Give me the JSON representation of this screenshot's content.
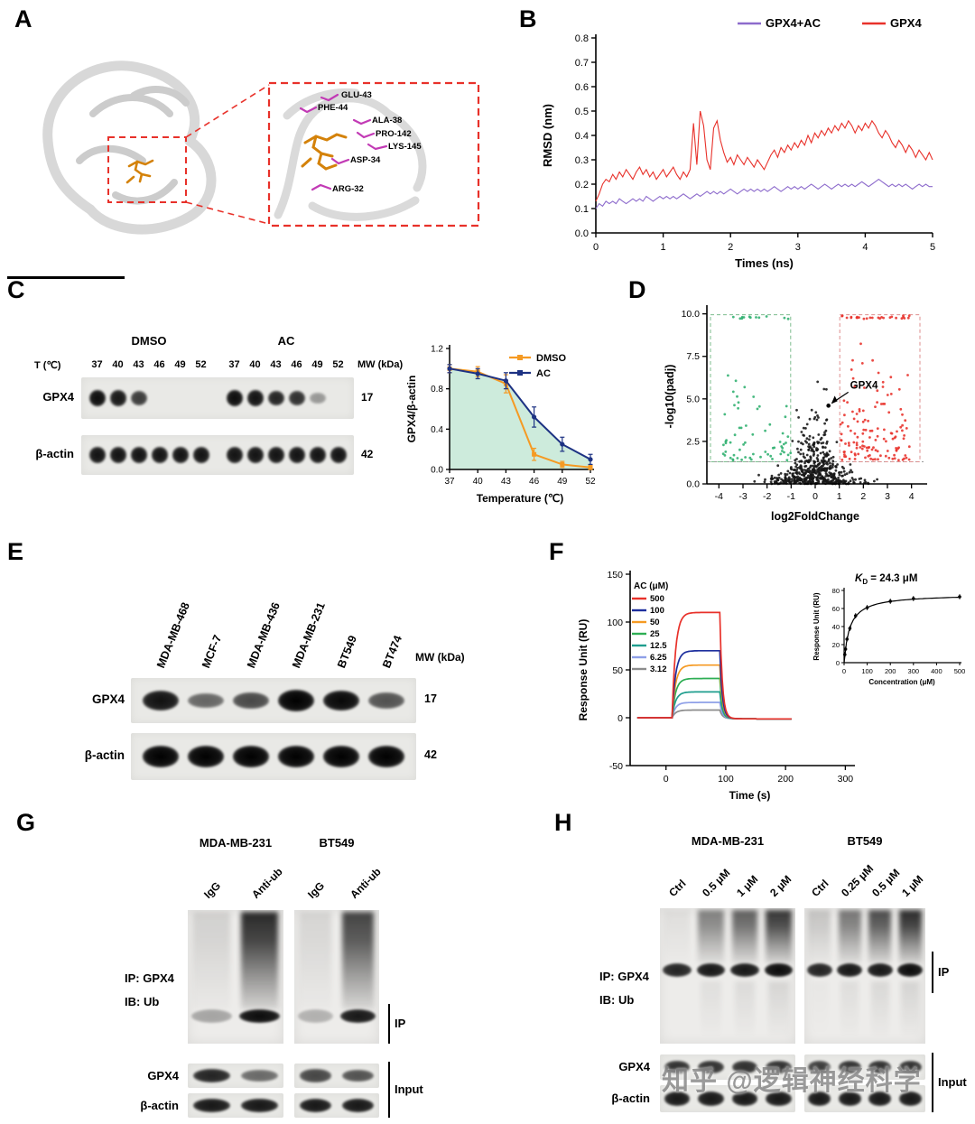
{
  "figure": {
    "watermark": "知乎 @逻辑神经科学"
  },
  "panels": {
    "A": {
      "label": "A",
      "residues": [
        "GLU-43",
        "PHE-44",
        "ALA-38",
        "PRO-142",
        "LYS-145",
        "ASP-34",
        "ARG-32"
      ],
      "colors": {
        "ligand": "#d4820a",
        "residue": "#c23ab5",
        "box": "#e8312a"
      }
    },
    "B": {
      "label": "B"
    },
    "C": {
      "label": "C",
      "blot": {
        "groups": [
          "DMSO",
          "AC"
        ],
        "temp_label": "T (℃)",
        "temps": [
          "37",
          "40",
          "43",
          "46",
          "49",
          "52"
        ],
        "mw_label": "MW (kDa)",
        "rows": [
          {
            "name": "GPX4",
            "mw": "17",
            "group_bands": [
              [
                0.95,
                0.9,
                0.75,
                0,
                0,
                0
              ],
              [
                0.95,
                0.92,
                0.85,
                0.8,
                0.35,
                0
              ]
            ]
          },
          {
            "name": "β-actin",
            "mw": "42",
            "group_bands": [
              [
                0.92,
                0.92,
                0.92,
                0.92,
                0.92,
                0.92
              ],
              [
                0.92,
                0.92,
                0.92,
                0.92,
                0.92,
                0.92
              ]
            ]
          }
        ]
      }
    },
    "D": {
      "label": "D"
    },
    "E": {
      "label": "E",
      "lanes": [
        "MDA-MB-468",
        "MCF-7",
        "MDA-MB-436",
        "MDA-MB-231",
        "BT549",
        "BT474"
      ],
      "mw_label": "MW (kDa)",
      "rows": [
        {
          "name": "GPX4",
          "mw": "17",
          "intensities": [
            0.85,
            0.4,
            0.55,
            1,
            0.9,
            0.5
          ]
        },
        {
          "name": "β-actin",
          "mw": "42",
          "intensities": [
            0.95,
            0.95,
            0.95,
            0.95,
            0.95,
            0.95
          ]
        }
      ]
    },
    "F": {
      "label": "F"
    },
    "G": {
      "label": "G",
      "groups": [
        {
          "name": "MDA-MB-231",
          "lanes": [
            "IgG",
            "Anti-ub"
          ]
        },
        {
          "name": "BT549",
          "lanes": [
            "IgG",
            "Anti-ub"
          ]
        }
      ],
      "ip_line1": "IP: GPX4",
      "ip_line2": "IB: Ub",
      "brackets": {
        "ip": "IP",
        "input": "Input"
      },
      "input_rows": [
        "GPX4",
        "β-actin"
      ],
      "smears": [
        [
          0.12,
          0.9
        ],
        [
          0.1,
          0.78
        ]
      ],
      "main_bands": [
        [
          0.3,
          0.95
        ],
        [
          0.25,
          0.9
        ]
      ],
      "input_bands": [
        [
          [
            0.85,
            0.55
          ],
          [
            0.7,
            0.65
          ]
        ],
        [
          [
            0.9,
            0.9
          ],
          [
            0.9,
            0.9
          ]
        ]
      ]
    },
    "H": {
      "label": "H",
      "groups": [
        {
          "name": "MDA-MB-231",
          "lanes": [
            "Ctrl",
            "0.5 μM",
            "1 μM",
            "2 μM"
          ]
        },
        {
          "name": "BT549",
          "lanes": [
            "Ctrl",
            "0.25 μM",
            "0.5 μM",
            "1 μM"
          ]
        }
      ],
      "ip_line1": "IP: GPX4",
      "ip_line2": "IB: Ub",
      "brackets": {
        "ip": "IP",
        "input": "Input"
      },
      "input_rows": [
        "GPX4",
        "β-actin"
      ],
      "smears": [
        [
          0.06,
          0.5,
          0.65,
          0.85
        ],
        [
          0.18,
          0.55,
          0.75,
          0.9
        ]
      ],
      "main_bands": [
        [
          0.85,
          0.9,
          0.9,
          0.95
        ],
        [
          0.85,
          0.9,
          0.9,
          0.95
        ]
      ],
      "input_bands": [
        [
          [
            0.8,
            0.8,
            0.8,
            0.8
          ],
          [
            0.75,
            0.8,
            0.8,
            0.8
          ]
        ],
        [
          [
            0.9,
            0.9,
            0.9,
            0.9
          ],
          [
            0.9,
            0.9,
            0.9,
            0.9
          ]
        ]
      ]
    }
  },
  "chart_data": [
    {
      "panel": "B",
      "type": "line",
      "xlabel": "Times (ns)",
      "ylabel": "RMSD (nm)",
      "xlim": [
        0,
        5
      ],
      "ylim": [
        0,
        0.8
      ],
      "xticks": [
        0,
        1,
        2,
        3,
        4,
        5
      ],
      "xtick_labels": [
        "0",
        "1",
        "2",
        "3",
        "4",
        "5"
      ],
      "yticks": [
        0,
        0.1,
        0.2,
        0.3,
        0.4,
        0.5,
        0.6,
        0.7,
        0.8
      ],
      "ytick_labels": [
        "0.0",
        "0.1",
        "0.2",
        "0.3",
        "0.4",
        "0.5",
        "0.6",
        "0.7",
        "0.8"
      ],
      "x_step": 0.05,
      "legend_position": "top-right",
      "series": [
        {
          "name": "GPX4+AC",
          "color": "#8d6bcc",
          "values": [
            0.1,
            0.12,
            0.11,
            0.13,
            0.12,
            0.13,
            0.12,
            0.14,
            0.13,
            0.12,
            0.13,
            0.14,
            0.13,
            0.14,
            0.13,
            0.15,
            0.14,
            0.13,
            0.14,
            0.15,
            0.14,
            0.15,
            0.14,
            0.15,
            0.14,
            0.15,
            0.16,
            0.15,
            0.14,
            0.15,
            0.16,
            0.15,
            0.16,
            0.17,
            0.16,
            0.17,
            0.16,
            0.17,
            0.16,
            0.17,
            0.18,
            0.17,
            0.16,
            0.17,
            0.18,
            0.17,
            0.18,
            0.17,
            0.18,
            0.17,
            0.18,
            0.17,
            0.18,
            0.19,
            0.18,
            0.17,
            0.18,
            0.19,
            0.18,
            0.19,
            0.18,
            0.19,
            0.18,
            0.19,
            0.2,
            0.19,
            0.18,
            0.19,
            0.2,
            0.19,
            0.18,
            0.19,
            0.2,
            0.19,
            0.2,
            0.19,
            0.2,
            0.19,
            0.2,
            0.21,
            0.2,
            0.19,
            0.2,
            0.21,
            0.22,
            0.21,
            0.2,
            0.19,
            0.2,
            0.19,
            0.2,
            0.19,
            0.2,
            0.19,
            0.18,
            0.19,
            0.2,
            0.19,
            0.2,
            0.19,
            0.19
          ]
        },
        {
          "name": "GPX4",
          "color": "#e8312a",
          "values": [
            0.13,
            0.16,
            0.2,
            0.22,
            0.21,
            0.24,
            0.22,
            0.25,
            0.23,
            0.26,
            0.24,
            0.22,
            0.25,
            0.27,
            0.24,
            0.26,
            0.23,
            0.25,
            0.22,
            0.24,
            0.26,
            0.23,
            0.25,
            0.27,
            0.24,
            0.22,
            0.25,
            0.23,
            0.26,
            0.45,
            0.28,
            0.5,
            0.44,
            0.3,
            0.26,
            0.43,
            0.46,
            0.38,
            0.33,
            0.29,
            0.31,
            0.28,
            0.32,
            0.3,
            0.28,
            0.31,
            0.29,
            0.27,
            0.3,
            0.28,
            0.26,
            0.29,
            0.32,
            0.34,
            0.31,
            0.35,
            0.33,
            0.36,
            0.34,
            0.37,
            0.35,
            0.38,
            0.36,
            0.4,
            0.37,
            0.41,
            0.39,
            0.42,
            0.4,
            0.43,
            0.41,
            0.44,
            0.42,
            0.45,
            0.43,
            0.46,
            0.44,
            0.41,
            0.44,
            0.42,
            0.45,
            0.43,
            0.46,
            0.44,
            0.41,
            0.39,
            0.42,
            0.4,
            0.37,
            0.35,
            0.38,
            0.36,
            0.33,
            0.36,
            0.34,
            0.31,
            0.34,
            0.32,
            0.3,
            0.33,
            0.3
          ]
        }
      ]
    },
    {
      "panel": "C",
      "type": "line",
      "xlabel": "Temperature (℃)",
      "ylabel": "GPX4/β-actin",
      "categories": [
        37,
        40,
        43,
        46,
        49,
        52
      ],
      "ylim": [
        0,
        1.2
      ],
      "yticks": [
        0,
        0.4,
        0.8,
        1.2
      ],
      "ytick_labels": [
        "0.0",
        "0.4",
        "0.8",
        "1.2"
      ],
      "fill_color": "#cdebdc",
      "series": [
        {
          "name": "DMSO",
          "color": "#f59a23",
          "values": [
            1.0,
            0.97,
            0.85,
            0.15,
            0.05,
            0.02
          ],
          "errors": [
            0.04,
            0.05,
            0.09,
            0.06,
            0.03,
            0.02
          ]
        },
        {
          "name": "AC",
          "color": "#1d3283",
          "values": [
            1.0,
            0.95,
            0.88,
            0.52,
            0.25,
            0.1
          ],
          "errors": [
            0.04,
            0.05,
            0.08,
            0.1,
            0.07,
            0.05
          ]
        }
      ]
    },
    {
      "panel": "D",
      "type": "scatter",
      "xlabel": "log2FoldChange",
      "ylabel": "-log10(padj)",
      "xlim": [
        -4.5,
        4.5
      ],
      "ylim": [
        0,
        10.3
      ],
      "xticks": [
        -4,
        -3,
        -2,
        -1,
        0,
        1,
        2,
        3,
        4
      ],
      "xtick_labels": [
        "-4",
        "-3",
        "-2",
        "-1",
        "0",
        "1",
        "2",
        "3",
        "4"
      ],
      "yticks": [
        0,
        2.5,
        5,
        7.5,
        10
      ],
      "ytick_labels": [
        "0.0",
        "2.5",
        "5.0",
        "7.5",
        "10.0"
      ],
      "colors": {
        "up": "#e8312a",
        "down": "#2eaf6e",
        "ns": "#161616"
      },
      "annotation": {
        "label": "GPX4",
        "x": 0.55,
        "y": 4.6
      },
      "spec": {
        "seed": 7,
        "n_center": 560,
        "n_up": 130,
        "n_down": 60,
        "n_capped_up": 26,
        "n_capped_down": 12,
        "x_threshold": 1,
        "y_threshold": 1.3
      }
    },
    {
      "panel": "F_main",
      "type": "line",
      "xlabel": "Time (s)",
      "ylabel": "Response Unit (RU)",
      "xlim": [
        -60,
        310
      ],
      "ylim": [
        -50,
        150
      ],
      "xticks": [
        0,
        100,
        200,
        300
      ],
      "xtick_labels": [
        "0",
        "100",
        "200",
        "300"
      ],
      "yticks": [
        -50,
        0,
        50,
        100,
        150
      ],
      "ytick_labels": [
        "-50",
        "0",
        "50",
        "100",
        "150"
      ],
      "legend_title": "AC (μM)",
      "assoc_start": 10,
      "assoc_end": 90,
      "t_end": 210,
      "series": [
        {
          "name": "500",
          "color": "#e8312a",
          "plateau": 110
        },
        {
          "name": "100",
          "color": "#1d2f9e",
          "plateau": 70
        },
        {
          "name": "50",
          "color": "#f59a23",
          "plateau": 55
        },
        {
          "name": "25",
          "color": "#2eae54",
          "plateau": 41
        },
        {
          "name": "12.5",
          "color": "#1f9e8e",
          "plateau": 27
        },
        {
          "name": "6.25",
          "color": "#8fa0e8",
          "plateau": 16
        },
        {
          "name": "3.12",
          "color": "#8c8c8c",
          "plateau": 8
        }
      ]
    },
    {
      "panel": "F_inset",
      "type": "line",
      "kd": {
        "k": "K",
        "sub": "D",
        "rest": " = 24.3 μM"
      },
      "xlabel": "Concentration (μM)",
      "ylabel": "Response Unit (RU)",
      "xlim": [
        0,
        500
      ],
      "ylim": [
        0,
        80
      ],
      "xticks": [
        0,
        100,
        200,
        300,
        400,
        500
      ],
      "yticks": [
        0,
        20,
        40,
        60,
        80
      ],
      "points_x": [
        3.12,
        6.25,
        12.5,
        25,
        50,
        100,
        200,
        300,
        500
      ],
      "points_y": [
        9,
        15,
        26,
        38,
        52,
        61,
        68,
        71,
        73
      ],
      "fit": {
        "rmax": 76,
        "kd": 24.3
      }
    }
  ]
}
